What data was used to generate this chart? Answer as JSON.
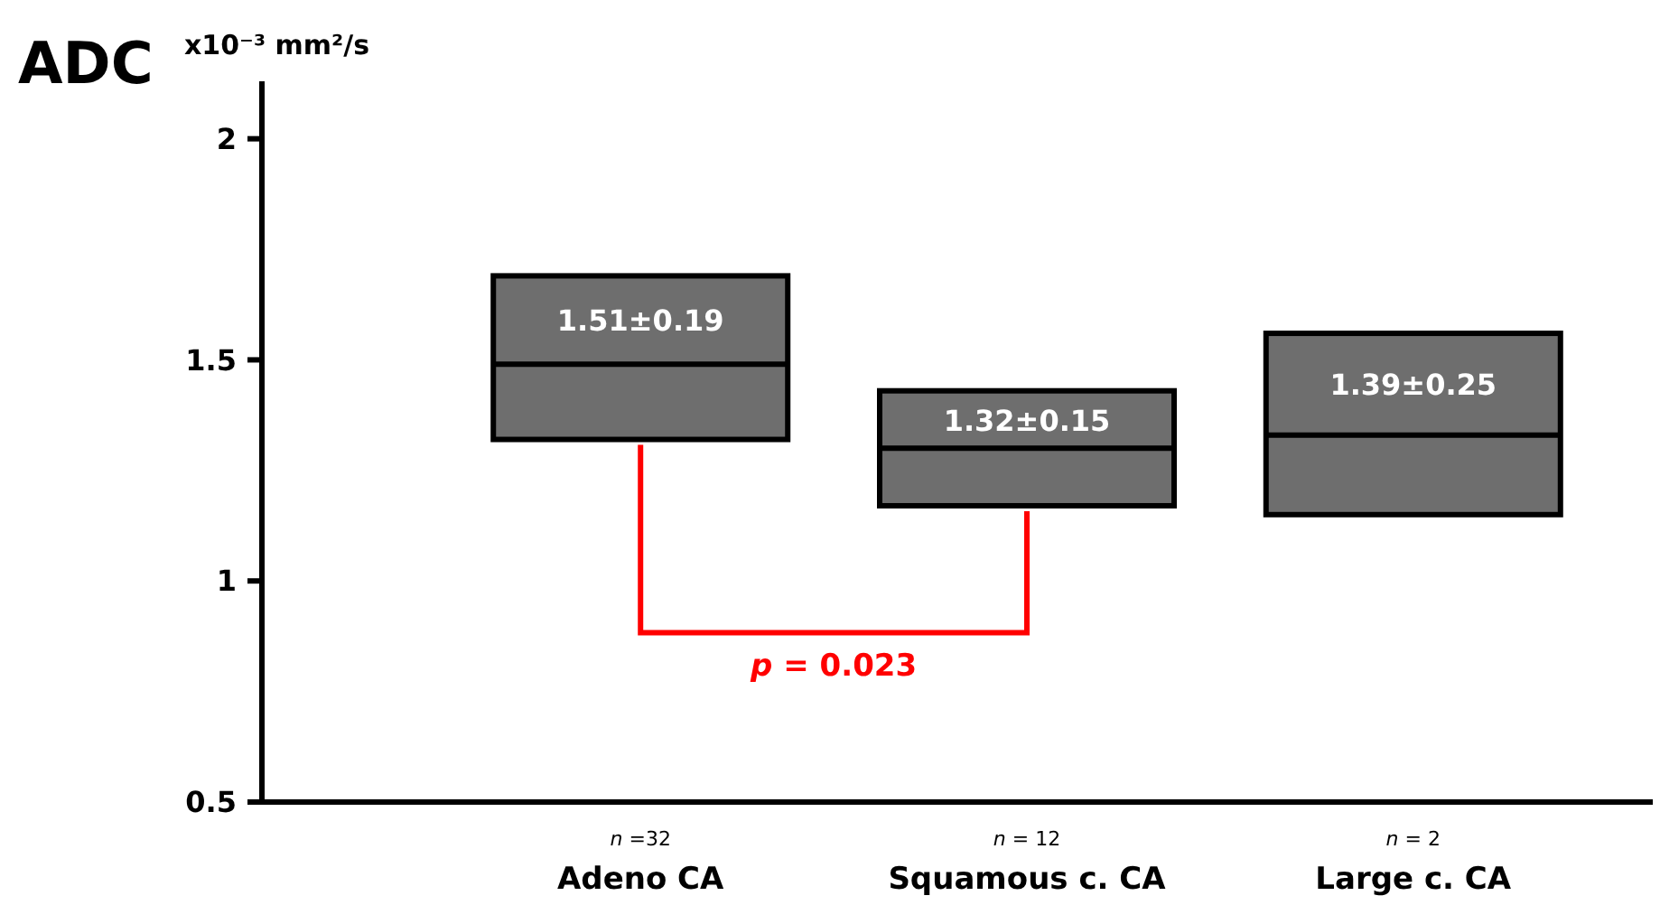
{
  "chart_data": {
    "type": "box",
    "title": "ADC",
    "ylabel": "x10⁻³ mm²/s",
    "categories": [
      "Adeno CA",
      "Squamous c. CA",
      "Large c. CA"
    ],
    "color": "#6e6e6e",
    "boxes": [
      {
        "low": 1.32,
        "q1": 1.32,
        "median": 1.49,
        "q3": 1.69,
        "high": 1.69
      },
      {
        "low": 1.17,
        "q1": 1.17,
        "median": 1.3,
        "q3": 1.43,
        "high": 1.43
      },
      {
        "low": 1.15,
        "q1": 1.15,
        "median": 1.33,
        "q3": 1.56,
        "high": 1.56
      }
    ],
    "ylim": [
      0.5,
      2.13
    ],
    "yticks": [
      {
        "value": 0.5,
        "label": "0.5"
      },
      {
        "value": 1,
        "label": "1"
      },
      {
        "value": 1.5,
        "label": "1.5"
      },
      {
        "value": 2,
        "label": "2"
      }
    ],
    "annotations": [
      "1.51±0.19",
      "1.32±0.15",
      "1.39±0.25",
      "n =32",
      "n = 12",
      "n = 2",
      "p = 0.023"
    ]
  }
}
